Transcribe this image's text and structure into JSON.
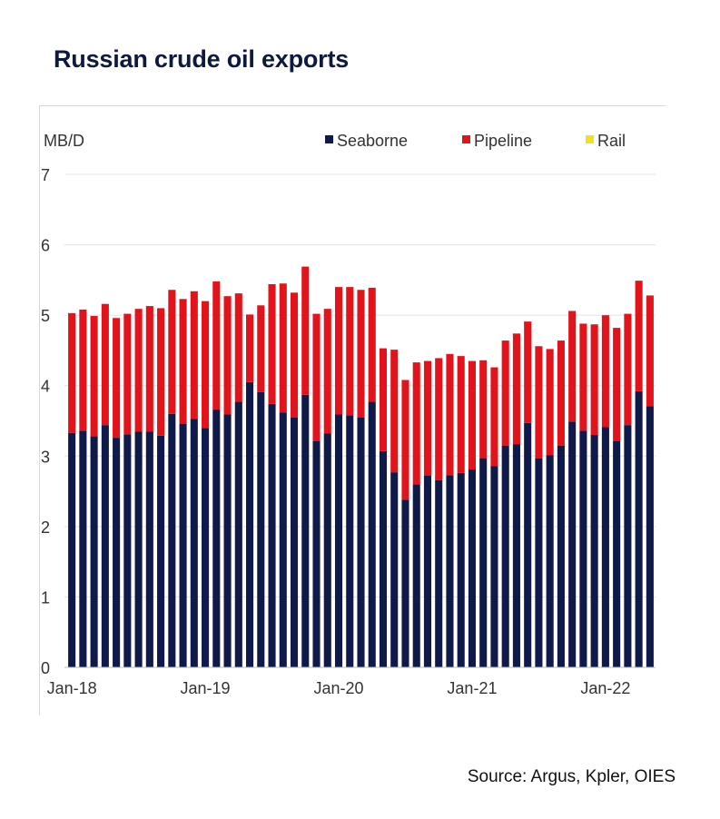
{
  "title": "Russian crude oil exports",
  "source": "Source: Argus, Kpler, OIES",
  "colors": {
    "seaborne": "#101a4a",
    "pipeline": "#e3131c",
    "rail": "#f5e11b",
    "grid": "#e4e4e4",
    "text": "#333333"
  },
  "chart_data": {
    "type": "bar",
    "stacked": true,
    "ylabel": "MB/D",
    "ylim": [
      0,
      7
    ],
    "yticks": [
      0,
      1,
      2,
      3,
      4,
      5,
      6,
      7
    ],
    "grid": true,
    "legend_position": "top",
    "x": [
      "Jan-18",
      "Feb-18",
      "Mar-18",
      "Apr-18",
      "May-18",
      "Jun-18",
      "Jul-18",
      "Aug-18",
      "Sep-18",
      "Oct-18",
      "Nov-18",
      "Dec-18",
      "Jan-19",
      "Feb-19",
      "Mar-19",
      "Apr-19",
      "May-19",
      "Jun-19",
      "Jul-19",
      "Aug-19",
      "Sep-19",
      "Oct-19",
      "Nov-19",
      "Dec-19",
      "Jan-20",
      "Feb-20",
      "Mar-20",
      "Apr-20",
      "May-20",
      "Jun-20",
      "Jul-20",
      "Aug-20",
      "Sep-20",
      "Oct-20",
      "Nov-20",
      "Dec-20",
      "Jan-21",
      "Feb-21",
      "Mar-21",
      "Apr-21",
      "May-21",
      "Jun-21",
      "Jul-21",
      "Aug-21",
      "Sep-21",
      "Oct-21",
      "Nov-21",
      "Dec-21",
      "Jan-22",
      "Feb-22",
      "Mar-22",
      "Apr-22",
      "May-22"
    ],
    "x_tick_labels": [
      "Jan-18",
      "Jan-19",
      "Jan-20",
      "Jan-21",
      "Jan-22"
    ],
    "series": [
      {
        "name": "Seaborne",
        "color": "#101a4a",
        "values": [
          3.33,
          3.36,
          3.28,
          3.44,
          3.26,
          3.31,
          3.35,
          3.35,
          3.29,
          3.6,
          3.46,
          3.53,
          3.4,
          3.66,
          3.59,
          3.77,
          4.05,
          3.91,
          3.74,
          3.62,
          3.55,
          3.87,
          3.21,
          3.32,
          3.59,
          3.58,
          3.55,
          3.77,
          3.07,
          2.77,
          2.38,
          2.6,
          2.72,
          2.66,
          2.73,
          2.76,
          2.81,
          2.97,
          2.86,
          3.15,
          3.17,
          3.47,
          2.97,
          3.01,
          3.15,
          3.49,
          3.36,
          3.3,
          3.41,
          3.21,
          3.44,
          3.92,
          3.71
        ]
      },
      {
        "name": "Pipeline",
        "color": "#e3131c",
        "values": [
          1.7,
          1.72,
          1.71,
          1.72,
          1.7,
          1.71,
          1.74,
          1.78,
          1.81,
          1.76,
          1.77,
          1.81,
          1.8,
          1.82,
          1.68,
          1.54,
          0.96,
          1.23,
          1.7,
          1.83,
          1.77,
          1.82,
          1.81,
          1.77,
          1.81,
          1.82,
          1.81,
          1.62,
          1.46,
          1.74,
          1.7,
          1.73,
          1.63,
          1.73,
          1.72,
          1.66,
          1.54,
          1.39,
          1.4,
          1.49,
          1.57,
          1.44,
          1.59,
          1.51,
          1.49,
          1.57,
          1.52,
          1.57,
          1.59,
          1.61,
          1.58,
          1.57,
          1.57
        ]
      },
      {
        "name": "Rail",
        "color": "#f5e11b",
        "values": [
          0,
          0,
          0,
          0,
          0,
          0,
          0,
          0,
          0,
          0,
          0,
          0,
          0,
          0,
          0,
          0,
          0,
          0,
          0,
          0,
          0,
          0,
          0,
          0,
          0,
          0,
          0,
          0,
          0,
          0,
          0,
          0,
          0,
          0,
          0,
          0,
          0,
          0,
          0,
          0,
          0,
          0,
          0,
          0,
          0,
          0,
          0,
          0,
          0,
          0,
          0,
          0,
          0
        ]
      }
    ]
  }
}
